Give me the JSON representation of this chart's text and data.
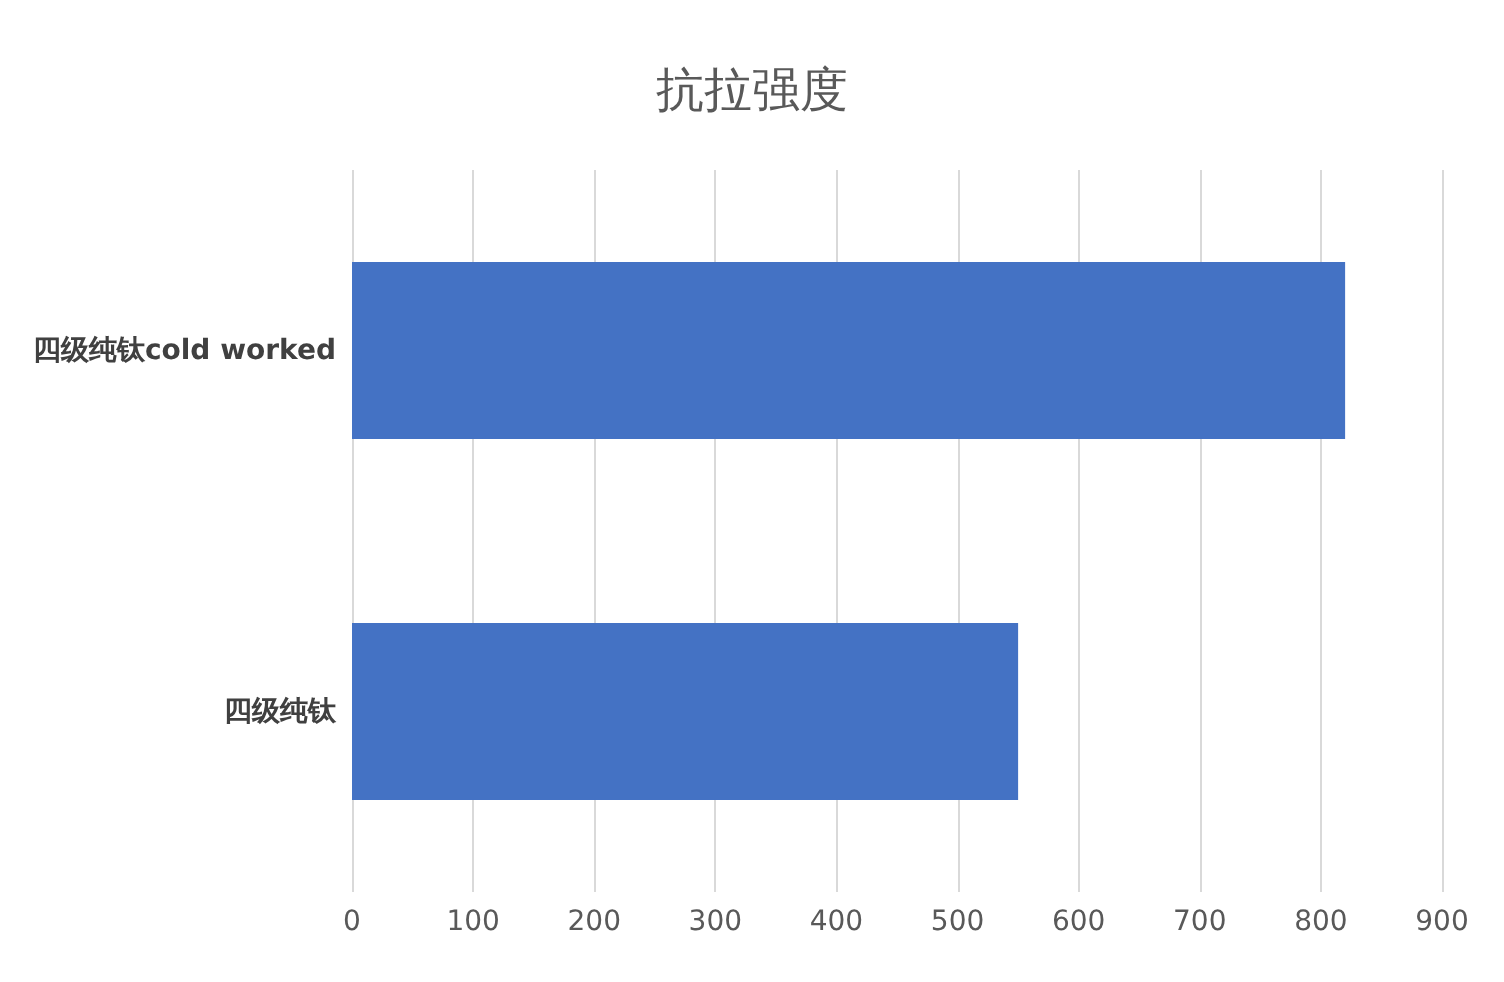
{
  "chart_data": {
    "type": "bar",
    "orientation": "horizontal",
    "title": "抗拉强度",
    "categories": [
      "四级纯钛cold worked",
      "四级纯钛"
    ],
    "values": [
      820,
      550
    ],
    "color": "#4472c4",
    "xlim": [
      0,
      900
    ],
    "xticks": [
      0,
      100,
      200,
      300,
      400,
      500,
      600,
      700,
      800,
      900
    ],
    "grid": "x"
  }
}
